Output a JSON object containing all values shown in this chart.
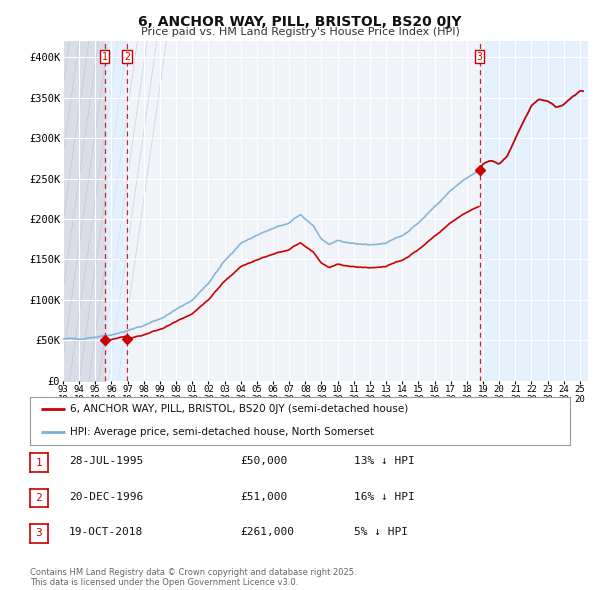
{
  "title": "6, ANCHOR WAY, PILL, BRISTOL, BS20 0JY",
  "subtitle": "Price paid vs. HM Land Registry's House Price Index (HPI)",
  "background_color": "#ffffff",
  "plot_bg_color": "#f0f4f8",
  "hatch_color": "#d8dde8",
  "grid_color": "#ffffff",
  "hpi_color": "#7bafd4",
  "hpi_fill_color": "#ccdded",
  "price_color": "#cc0000",
  "vline_color": "#cc0000",
  "highlight_fill": "#ddeeff",
  "ylim": [
    0,
    420000
  ],
  "yticks": [
    0,
    50000,
    100000,
    150000,
    200000,
    250000,
    300000,
    350000,
    400000
  ],
  "ytick_labels": [
    "£0",
    "£50K",
    "£100K",
    "£150K",
    "£200K",
    "£250K",
    "£300K",
    "£350K",
    "£400K"
  ],
  "purchase_years_dec": [
    1995.577,
    1996.962,
    2018.799
  ],
  "purchase_prices": [
    50000,
    51000,
    261000
  ],
  "purchase_labels": [
    "1",
    "2",
    "3"
  ],
  "legend_property_label": "6, ANCHOR WAY, PILL, BRISTOL, BS20 0JY (semi-detached house)",
  "legend_hpi_label": "HPI: Average price, semi-detached house, North Somerset",
  "footer": "Contains HM Land Registry data © Crown copyright and database right 2025.\nThis data is licensed under the Open Government Licence v3.0.",
  "table_rows": [
    [
      "1",
      "28-JUL-1995",
      "£50,000",
      "13% ↓ HPI"
    ],
    [
      "2",
      "20-DEC-1996",
      "£51,000",
      "16% ↓ HPI"
    ],
    [
      "3",
      "19-OCT-2018",
      "£261,000",
      "5% ↓ HPI"
    ]
  ],
  "xlim": [
    1993.0,
    2025.5
  ],
  "xtick_years": [
    1993,
    1994,
    1995,
    1996,
    1997,
    1998,
    1999,
    2000,
    2001,
    2002,
    2003,
    2004,
    2005,
    2006,
    2007,
    2008,
    2009,
    2010,
    2011,
    2012,
    2013,
    2014,
    2015,
    2016,
    2017,
    2018,
    2019,
    2020,
    2021,
    2022,
    2023,
    2024,
    2025
  ]
}
